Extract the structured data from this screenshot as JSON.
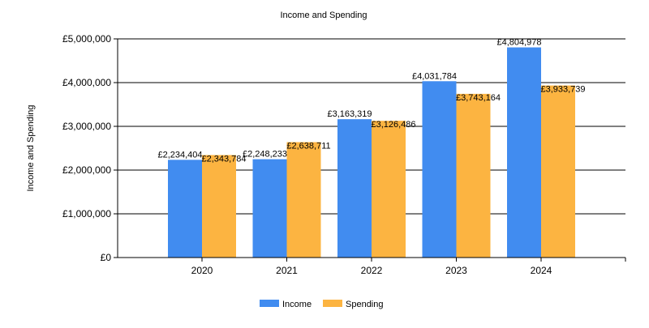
{
  "chart_data": {
    "type": "bar",
    "title": "Income and Spending",
    "xlabel": "",
    "ylabel": "Income and Spending",
    "categories": [
      "2020",
      "2021",
      "2022",
      "2023",
      "2024"
    ],
    "series": [
      {
        "name": "Income",
        "color": "#418CF0",
        "values": [
          2234404,
          2248233,
          3163319,
          4031784,
          4804978
        ],
        "labels": [
          "£2,234,404",
          "£2,248,233",
          "£3,163,319",
          "£4,031,784",
          "£4,804,978"
        ]
      },
      {
        "name": "Spending",
        "color": "#FCB441",
        "values": [
          2343784,
          2638711,
          3126486,
          3743164,
          3933739
        ],
        "labels": [
          "£2,343,784",
          "£2,638,711",
          "£3,126,486",
          "£3,743,164",
          "£3,933,739"
        ]
      }
    ],
    "ylim": [
      0,
      5000000
    ],
    "yticks": [
      0,
      1000000,
      2000000,
      3000000,
      4000000,
      5000000
    ],
    "ytick_labels": [
      "£0",
      "£1,000,000",
      "£2,000,000",
      "£3,000,000",
      "£4,000,000",
      "£5,000,000"
    ],
    "grid": true,
    "legend_position": "bottom-center"
  }
}
